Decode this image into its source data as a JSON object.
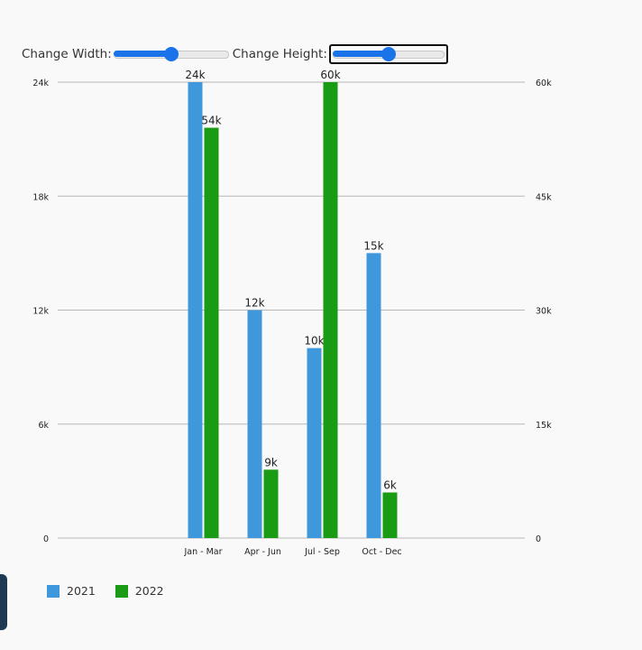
{
  "controls": {
    "width_label": "Change Width:",
    "height_label": "Change Height:",
    "width_value": 0.5,
    "height_value": 0.5
  },
  "colors": {
    "series_2021": "#3f97dc",
    "series_2022": "#1a9b14",
    "grid": "#b8b8b8",
    "background": "#f9f9f9",
    "accent": "#1a73e8"
  },
  "chart_data": {
    "type": "bar",
    "categories": [
      "Jan - Mar",
      "Apr - Jun",
      "Jul - Sep",
      "Oct - Dec"
    ],
    "series": [
      {
        "name": "2021",
        "axis": "left",
        "values": [
          24000,
          12000,
          10000,
          15000
        ],
        "labels": [
          "24k",
          "12k",
          "10k",
          "15k"
        ]
      },
      {
        "name": "2022",
        "axis": "right",
        "values": [
          54000,
          9000,
          60000,
          6000
        ],
        "labels": [
          "54k",
          "9k",
          "60k",
          "6k"
        ]
      }
    ],
    "y_left": {
      "range": [
        0,
        24000
      ],
      "ticks": [
        0,
        6000,
        12000,
        18000,
        24000
      ],
      "tick_labels": [
        "0",
        "6k",
        "12k",
        "18k",
        "24k"
      ]
    },
    "y_right": {
      "range": [
        0,
        60000
      ],
      "ticks": [
        0,
        15000,
        30000,
        45000,
        60000
      ],
      "tick_labels": [
        "0",
        "15k",
        "30k",
        "45k",
        "60k"
      ]
    },
    "grid": true,
    "legend_position": "bottom-left"
  }
}
